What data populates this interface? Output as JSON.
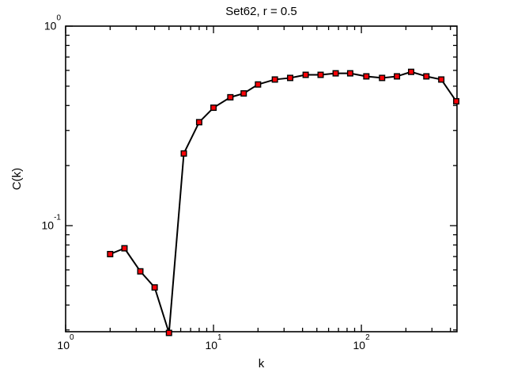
{
  "figure": {
    "background_color": "#ffffff"
  },
  "chart_data": {
    "type": "line",
    "title": "Set62, r = 0.5",
    "xlabel": "k",
    "ylabel": "C(k)",
    "x_scale": "log",
    "y_scale": "log",
    "xlim": [
      1,
      443
    ],
    "ylim": [
      0.0294,
      1
    ],
    "grid": false,
    "legend": "none",
    "x_ticks": [
      {
        "v": 1,
        "base": "10",
        "exp": "0"
      },
      {
        "v": 10,
        "base": "10",
        "exp": "1"
      },
      {
        "v": 100,
        "base": "10",
        "exp": "2"
      }
    ],
    "y_ticks": [
      {
        "v": 1,
        "base": "10",
        "exp": "0"
      },
      {
        "v": 0.1,
        "base": "10",
        "exp": "-1"
      }
    ],
    "x_minor_ticks": [
      2,
      3,
      4,
      5,
      6,
      7,
      8,
      9,
      20,
      30,
      40,
      50,
      60,
      70,
      80,
      90,
      200,
      300,
      400
    ],
    "y_minor_ticks": [
      0.9,
      0.8,
      0.7,
      0.6,
      0.5,
      0.4,
      0.3,
      0.2,
      0.09,
      0.08,
      0.07,
      0.06,
      0.05,
      0.04,
      0.03
    ],
    "series": [
      {
        "name": "C(k)",
        "marker": "square",
        "x": [
          2,
          2.5,
          3.2,
          4,
          5,
          6.3,
          8,
          10,
          13,
          16,
          20,
          26,
          33,
          42,
          53,
          67,
          84,
          108,
          138,
          174,
          217,
          275,
          347,
          438
        ],
        "y": [
          0.072,
          0.077,
          0.059,
          0.049,
          0.029,
          0.23,
          0.33,
          0.39,
          0.44,
          0.46,
          0.51,
          0.54,
          0.55,
          0.57,
          0.57,
          0.58,
          0.58,
          0.56,
          0.55,
          0.56,
          0.59,
          0.56,
          0.54,
          0.42
        ]
      }
    ],
    "colors": {
      "line": "#000000",
      "marker_fill": "#fb0207",
      "marker_edge": "#000000",
      "axis": "#000000",
      "text": "#000000",
      "background": "#ffffff"
    }
  }
}
